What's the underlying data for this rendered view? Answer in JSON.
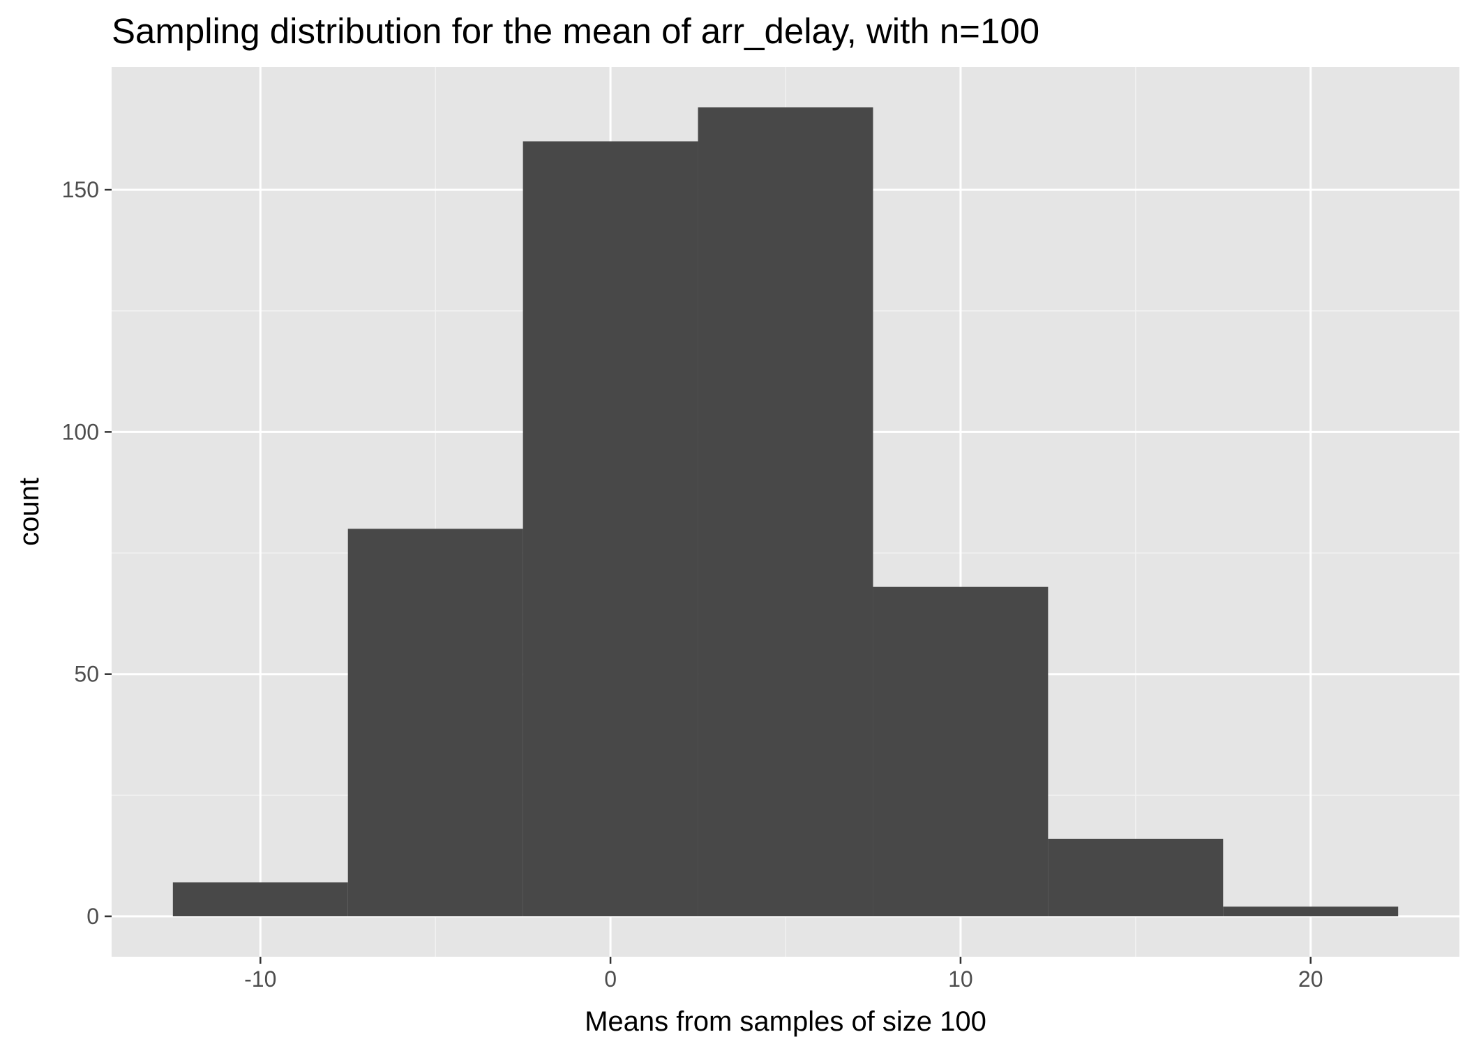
{
  "chart_data": {
    "type": "bar",
    "title": "Sampling distribution for the mean of arr_delay, with n=100",
    "xlabel": "Means from samples of size 100",
    "ylabel": "count",
    "xlim": [
      -14.25,
      24.25
    ],
    "ylim": [
      -8.35,
      175.35
    ],
    "x_ticks": [
      -10,
      0,
      10,
      20
    ],
    "x_minor_ticks": [
      -5,
      5,
      15
    ],
    "y_ticks": [
      0,
      50,
      100,
      150
    ],
    "y_minor_ticks": [
      25,
      75,
      125
    ],
    "grid": true,
    "bins": [
      {
        "x0": -12.5,
        "x1": -7.5,
        "count": 7
      },
      {
        "x0": -7.5,
        "x1": -2.5,
        "count": 80
      },
      {
        "x0": -2.5,
        "x1": 2.5,
        "count": 160
      },
      {
        "x0": 2.5,
        "x1": 7.5,
        "count": 167
      },
      {
        "x0": 7.5,
        "x1": 12.5,
        "count": 68
      },
      {
        "x0": 12.5,
        "x1": 17.5,
        "count": 16
      },
      {
        "x0": 17.5,
        "x1": 22.5,
        "count": 2
      }
    ],
    "colors": {
      "bar_fill": "#484848",
      "panel_background": "#e5e5e5",
      "grid_major": "#ffffff",
      "grid_minor": "#f2f2f2",
      "tick_label": "#4d4d4d",
      "text": "#000000"
    }
  }
}
